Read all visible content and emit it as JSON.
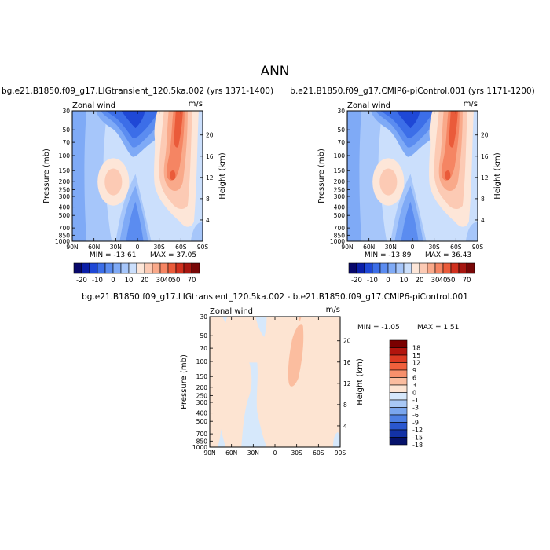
{
  "page_title": "ANN",
  "chart_data": [
    {
      "type": "contour",
      "id": "p1",
      "title": "bg.e21.B1850.f09_g17.LIGtransient_120.5ka.002 (yrs 1371-1400)",
      "variable": "Zonal wind",
      "units": "m/s",
      "ylabel": "Pressure (mb)",
      "y2label": "Height (km)",
      "x_ticks": [
        "90N",
        "60N",
        "30N",
        "0",
        "30S",
        "60S",
        "90S"
      ],
      "y_ticks": [
        "30",
        "50",
        "70",
        "100",
        "150",
        "200",
        "250",
        "300",
        "400",
        "500",
        "700",
        "850",
        "1000"
      ],
      "height_ticks": [
        "20",
        "16",
        "12",
        "8",
        "4"
      ],
      "min_label": "MIN = -13.61",
      "max_label": "MAX = 37.05",
      "min": -13.61,
      "max": 37.05,
      "colorbar_labels": [
        "-20",
        "-10",
        "0",
        "10",
        "20",
        "30",
        "40",
        "50",
        "70"
      ]
    },
    {
      "type": "contour",
      "id": "p2",
      "title": "b.e21.B1850.f09_g17.CMIP6-piControl.001 (yrs 1171-1200)",
      "variable": "Zonal wind",
      "units": "m/s",
      "ylabel": "Pressure (mb)",
      "y2label": "Height (km)",
      "x_ticks": [
        "90N",
        "60N",
        "30N",
        "0",
        "30S",
        "60S",
        "90S"
      ],
      "y_ticks": [
        "30",
        "50",
        "70",
        "100",
        "150",
        "200",
        "250",
        "300",
        "400",
        "500",
        "700",
        "850",
        "1000"
      ],
      "height_ticks": [
        "20",
        "16",
        "12",
        "8",
        "4"
      ],
      "min_label": "MIN = -13.89",
      "max_label": "MAX = 36.43",
      "min": -13.89,
      "max": 36.43,
      "colorbar_labels": [
        "-20",
        "-10",
        "0",
        "10",
        "20",
        "30",
        "40",
        "50",
        "70"
      ]
    },
    {
      "type": "contour",
      "id": "p3",
      "title": "bg.e21.B1850.f09_g17.LIGtransient_120.5ka.002 - b.e21.B1850.f09_g17.CMIP6-piControl.001",
      "variable": "Zonal wind",
      "units": "m/s",
      "ylabel": "Pressure (mb)",
      "y2label": "Height (km)",
      "x_ticks": [
        "90N",
        "60N",
        "30N",
        "0",
        "30S",
        "60S",
        "90S"
      ],
      "y_ticks": [
        "30",
        "50",
        "70",
        "100",
        "150",
        "200",
        "250",
        "300",
        "400",
        "500",
        "700",
        "850",
        "1000"
      ],
      "height_ticks": [
        "20",
        "16",
        "12",
        "8",
        "4"
      ],
      "min_label": "MIN = -1.05",
      "max_label": "MAX = 1.51",
      "min": -1.05,
      "max": 1.51,
      "colorbar_labels": [
        "18",
        "15",
        "12",
        "9",
        "6",
        "3",
        "0",
        "-1",
        "-3",
        "-6",
        "-9",
        "-12",
        "-15",
        "-18"
      ]
    }
  ],
  "colors": {
    "field_colorbar": [
      "#08086b",
      "#0b1fa8",
      "#1f48d6",
      "#3c6ee8",
      "#5b8cf0",
      "#7faaf6",
      "#a6c6fa",
      "#cbdffc",
      "#fde6d8",
      "#fccab4",
      "#f9a98a",
      "#f58563",
      "#ea5b3a",
      "#d0301e",
      "#a71610",
      "#780707"
    ],
    "diff_colorbar": [
      "#7a0000",
      "#b2150e",
      "#dc3a22",
      "#f0603c",
      "#f7906c",
      "#fbbd9f",
      "#fde4d2",
      "#d6e8fb",
      "#a8c8f6",
      "#7aa6ee",
      "#4d7fe3",
      "#2a57cf",
      "#1332a6",
      "#06126b"
    ]
  }
}
